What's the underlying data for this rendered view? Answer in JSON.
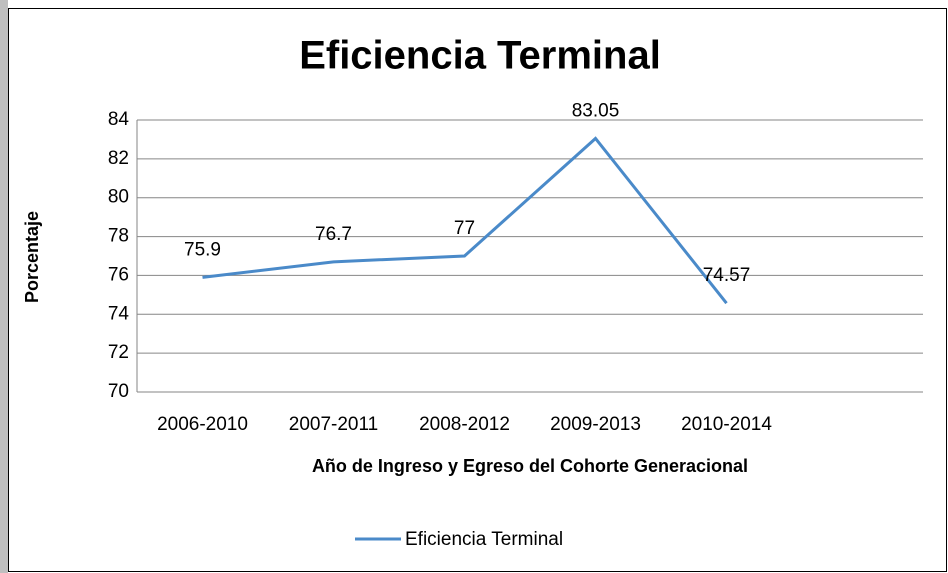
{
  "chart_data": {
    "type": "line",
    "title": "Eficiencia Terminal",
    "x_label": "Año de Ingreso y Egreso del Cohorte Generacional",
    "y_label": "Porcentaje",
    "categories": [
      "2006-2010",
      "2007-2011",
      "2008-2012",
      "2009-2013",
      "2010-2014",
      null
    ],
    "series": [
      {
        "name": "Eficiencia Terminal",
        "color": "#4a8ac9",
        "values": [
          75.9,
          76.7,
          77,
          83.05,
          74.57,
          null
        ]
      }
    ],
    "ylim": [
      70,
      84
    ],
    "yticks": [
      70,
      72,
      74,
      76,
      78,
      80,
      82,
      84
    ],
    "grid": true,
    "legend": "bottom"
  }
}
